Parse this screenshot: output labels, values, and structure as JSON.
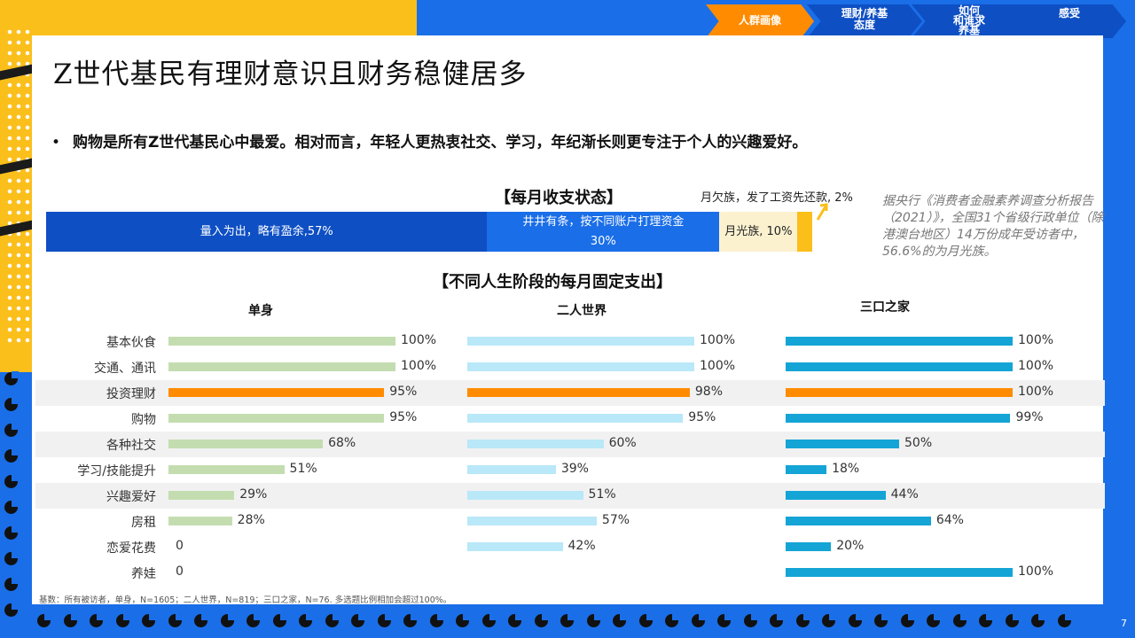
{
  "nav": {
    "tabs": [
      {
        "label": "人群画像",
        "active": true
      },
      {
        "label": "理财/养基\n态度",
        "active": false
      },
      {
        "label": "如何\n和谁求\n养基",
        "active": false
      },
      {
        "label": "感受",
        "active": false
      }
    ]
  },
  "title": "Z世代基民有理财意识且财务稳健居多",
  "bullet": "购物是所有Z世代基民心中最爱。相对而言，年轻人更热衷社交、学习，年纪渐长则更专注于个人的兴趣爱好。",
  "colors": {
    "dark_blue": "#0e4fc4",
    "mid_blue": "#1a6ee8",
    "cream": "#fbf1cf",
    "yellow": "#fbbf1c",
    "orange": "#ff8c00",
    "single_bar": "#c4ddb0",
    "couple_bar": "#b9e8f8",
    "family_bar": "#14a4d6"
  },
  "chart_data": [
    {
      "type": "bar",
      "stacked": true,
      "orientation": "horizontal",
      "title": "【每月收支状态】",
      "segments": [
        {
          "label": "量入为出，略有盈余,57%",
          "value": 57,
          "color": "#0e4fc4"
        },
        {
          "label": "井井有条，按不同账户打理资金\n30%",
          "value": 30,
          "color": "#1a6ee8"
        },
        {
          "label": "月光族, 10%",
          "value": 10,
          "color": "#fbf1cf"
        },
        {
          "label": "",
          "value": 2,
          "color": "#fbbf1c"
        }
      ],
      "callout": "月欠族，发了工资先还款, 2%",
      "note": "据央行《消费者金融素养调查分析报告（2021）》，全国31个省级行政单位（除港澳台地区）14万份成年受访者中，56.6%的为月光族。"
    },
    {
      "type": "bar",
      "orientation": "horizontal",
      "title": "【不同人生阶段的每月固定支出】",
      "xlim": [
        0,
        100
      ],
      "categories": [
        "基本伙食",
        "交通、通讯",
        "投资理财",
        "购物",
        "各种社交",
        "学习/技能提升",
        "兴趣爱好",
        "房租",
        "恋爱花费",
        "养娃"
      ],
      "highlight_category": "投资理财",
      "series": [
        {
          "name": "单身",
          "values": [
            100,
            100,
            95,
            95,
            68,
            51,
            29,
            28,
            0,
            0
          ]
        },
        {
          "name": "二人世界",
          "values": [
            100,
            100,
            98,
            95,
            60,
            39,
            51,
            57,
            42,
            null
          ]
        },
        {
          "name": "三口之家",
          "values": [
            100,
            100,
            100,
            99,
            50,
            18,
            44,
            64,
            20,
            100
          ]
        }
      ]
    }
  ],
  "footnote": "基数：所有被访者，单身，N=1605；二人世界，N=819；三口之家，N=76. 多选题比例相加会超过100%。",
  "page_number": "7"
}
